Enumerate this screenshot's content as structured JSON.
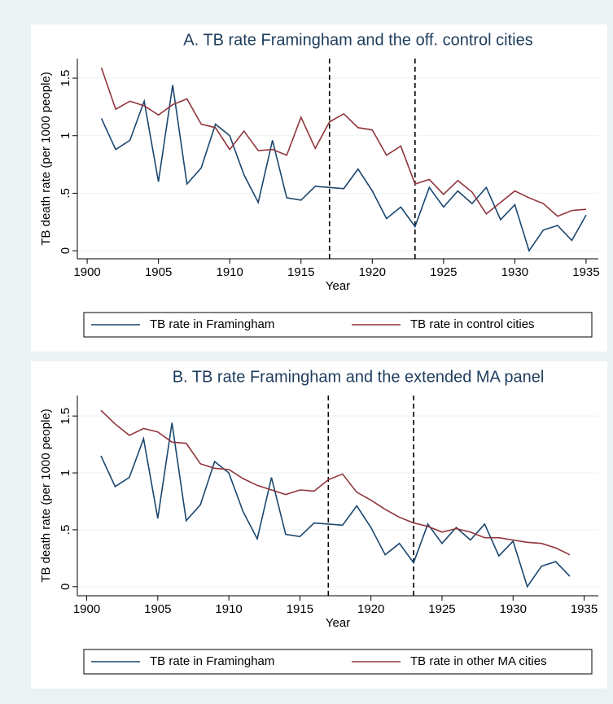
{
  "chart_data": [
    {
      "type": "line",
      "title": "A. TB rate Framingham and the off. control cities",
      "x_label": "Year",
      "y_label": "TB death rate (per 1000 people)",
      "xlim": [
        1899.31,
        1935.86
      ],
      "xticks": [
        1900,
        1905,
        1910,
        1915,
        1920,
        1925,
        1930,
        1935
      ],
      "ylim": [
        -0.07,
        1.67
      ],
      "yticks": [
        0,
        {
          "value": 0.5,
          "label": ".5"
        },
        1,
        {
          "value": 1.5,
          "label": "1.5"
        }
      ],
      "grid": true,
      "vlines": [
        1917,
        1923
      ],
      "legend": "bottom",
      "series": [
        {
          "name": "TB rate in Framingham",
          "color": "#1a476f",
          "x": [
            1901,
            1902,
            1903,
            1904,
            1905,
            1906,
            1907,
            1908,
            1909,
            1910,
            1911,
            1912,
            1913,
            1914,
            1915,
            1916,
            1917,
            1918,
            1919,
            1920,
            1921,
            1922,
            1923,
            1924,
            1925,
            1926,
            1927,
            1928,
            1929,
            1930,
            1931,
            1932,
            1933,
            1934,
            1935
          ],
          "values": [
            1.15,
            0.88,
            0.96,
            1.3,
            0.6,
            1.44,
            0.58,
            0.72,
            1.1,
            1.0,
            0.66,
            0.42,
            0.96,
            0.46,
            0.44,
            0.56,
            0.55,
            0.54,
            0.71,
            0.52,
            0.28,
            0.38,
            0.21,
            0.55,
            0.38,
            0.52,
            0.41,
            0.55,
            0.27,
            0.4,
            0.0,
            0.18,
            0.22,
            0.09,
            0.31
          ]
        },
        {
          "name": "TB rate in control cities",
          "color": "#90353b",
          "x": [
            1901,
            1902,
            1903,
            1904,
            1905,
            1906,
            1907,
            1908,
            1909,
            1910,
            1911,
            1912,
            1913,
            1914,
            1915,
            1916,
            1917,
            1918,
            1919,
            1920,
            1921,
            1922,
            1923,
            1924,
            1925,
            1926,
            1927,
            1928,
            1929,
            1930,
            1931,
            1932,
            1933,
            1934,
            1935
          ],
          "values": [
            1.59,
            1.23,
            1.3,
            1.26,
            1.18,
            1.27,
            1.32,
            1.1,
            1.07,
            0.88,
            1.04,
            0.87,
            0.88,
            0.83,
            1.16,
            0.89,
            1.12,
            1.19,
            1.07,
            1.05,
            0.83,
            0.91,
            0.58,
            0.62,
            0.49,
            0.61,
            0.51,
            0.32,
            0.42,
            0.52,
            0.46,
            0.41,
            0.3,
            0.35,
            0.36
          ]
        }
      ]
    },
    {
      "type": "line",
      "title": "B. TB rate Framingham and the extended MA panel",
      "x_label": "Year",
      "y_label": "TB death rate (per 1000 people)",
      "xlim": [
        1899.34,
        1936.0
      ],
      "xticks": [
        1900,
        1905,
        1910,
        1915,
        1920,
        1925,
        1930,
        1935
      ],
      "ylim": [
        -0.08,
        1.68
      ],
      "yticks": [
        0,
        {
          "value": 0.5,
          "label": ".5"
        },
        1,
        {
          "value": 1.5,
          "label": "1.5"
        }
      ],
      "grid": true,
      "vlines": [
        1917,
        1923
      ],
      "legend": "bottom",
      "series": [
        {
          "name": "TB rate in Framingham",
          "color": "#1a476f",
          "x": [
            1901,
            1902,
            1903,
            1904,
            1905,
            1906,
            1907,
            1908,
            1909,
            1910,
            1911,
            1912,
            1913,
            1914,
            1915,
            1916,
            1917,
            1918,
            1919,
            1920,
            1921,
            1922,
            1923,
            1924,
            1925,
            1926,
            1927,
            1928,
            1929,
            1930,
            1931,
            1932,
            1933,
            1934
          ],
          "values": [
            1.15,
            0.88,
            0.96,
            1.3,
            0.6,
            1.44,
            0.58,
            0.72,
            1.1,
            1.0,
            0.66,
            0.42,
            0.96,
            0.46,
            0.44,
            0.56,
            0.55,
            0.54,
            0.71,
            0.52,
            0.28,
            0.38,
            0.21,
            0.55,
            0.38,
            0.52,
            0.41,
            0.55,
            0.27,
            0.4,
            0.0,
            0.18,
            0.22,
            0.09
          ]
        },
        {
          "name": "TB rate in other MA cities",
          "color": "#90353b",
          "x": [
            1901,
            1902,
            1903,
            1904,
            1905,
            1906,
            1907,
            1908,
            1909,
            1910,
            1911,
            1912,
            1913,
            1914,
            1915,
            1916,
            1917,
            1918,
            1919,
            1920,
            1921,
            1922,
            1923,
            1924,
            1925,
            1926,
            1927,
            1928,
            1929,
            1930,
            1931,
            1932,
            1933,
            1934
          ],
          "values": [
            1.55,
            1.43,
            1.33,
            1.39,
            1.36,
            1.27,
            1.26,
            1.08,
            1.04,
            1.03,
            0.95,
            0.89,
            0.85,
            0.81,
            0.85,
            0.84,
            0.94,
            0.99,
            0.83,
            0.76,
            0.68,
            0.61,
            0.56,
            0.53,
            0.48,
            0.51,
            0.48,
            0.43,
            0.43,
            0.41,
            0.39,
            0.38,
            0.34,
            0.28
          ]
        }
      ]
    }
  ]
}
